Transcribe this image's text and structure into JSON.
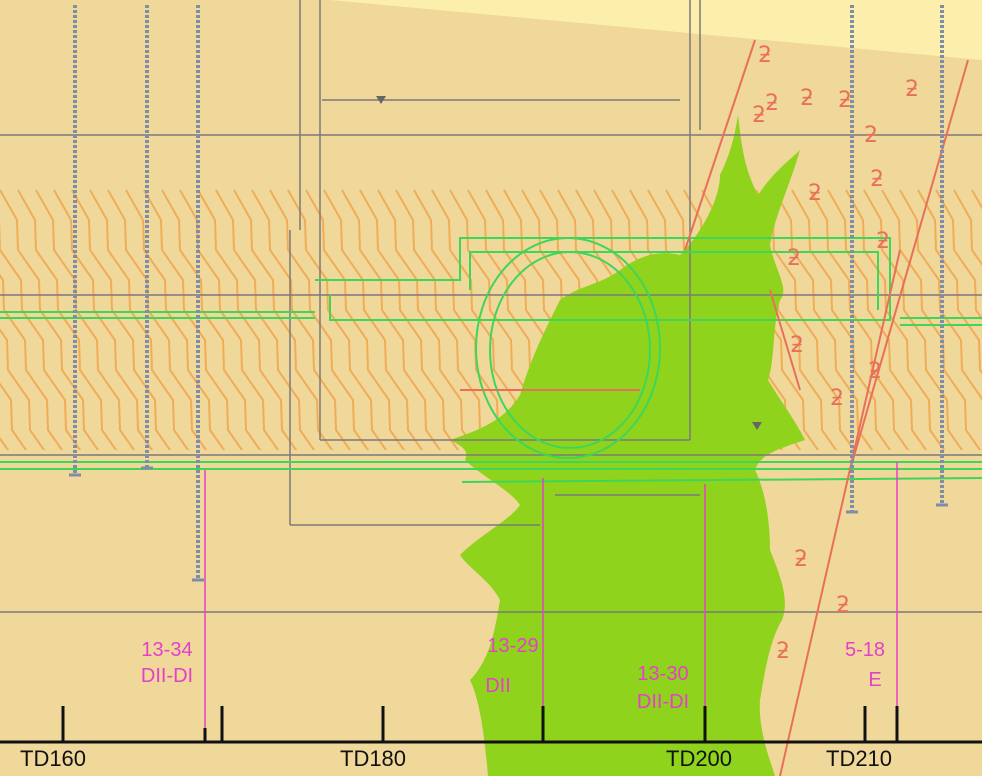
{
  "colors": {
    "background": "#f0d79a",
    "upper_band": "#fbefab",
    "fault_zone": "#8fd31c",
    "green_lines": "#3ed65a",
    "hatch": "#f0a64c",
    "red_lines": "#e8705a",
    "pink_label": "#e540c8",
    "grid": "#7a7a7a",
    "bolts": "#7e8ea8",
    "axis": "#111111"
  },
  "stations": [
    {
      "id": "td160",
      "label": "TD160"
    },
    {
      "id": "td180",
      "label": "TD180"
    },
    {
      "id": "td200",
      "label": "TD200"
    },
    {
      "id": "td210",
      "label": "TD210"
    }
  ],
  "boreholes": [
    {
      "id": "bh-13-34",
      "line1": "13-34",
      "line2": "DII-DI"
    },
    {
      "id": "bh-13-29",
      "line1": "13-29",
      "line2": "DII"
    },
    {
      "id": "bh-13-30",
      "line1": "13-30",
      "line2": "DII-DI"
    },
    {
      "id": "bh-5-18",
      "line1": "5-18",
      "line2": "E"
    }
  ],
  "annotations": {
    "crack_symbol": "ƻ",
    "crack_count": 17
  }
}
